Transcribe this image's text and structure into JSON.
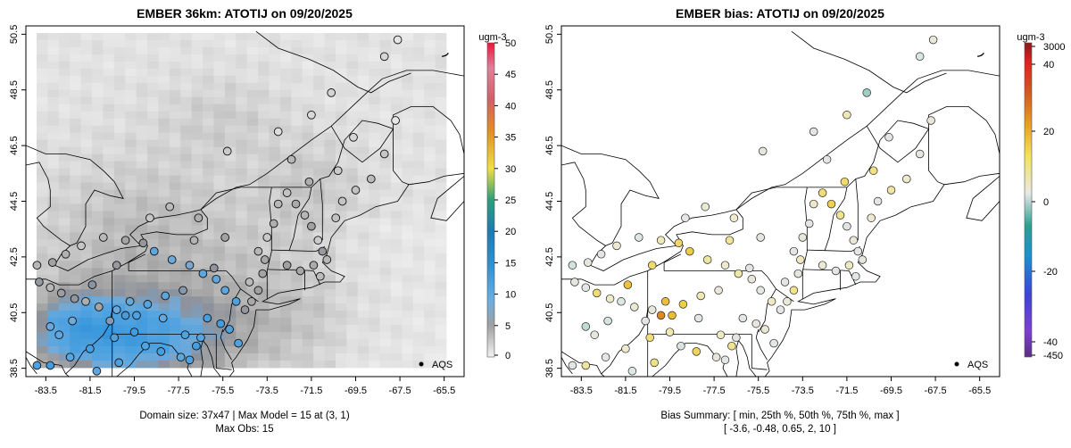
{
  "panels": {
    "left": {
      "title": "EMBER 36km: ATOTIJ on 09/20/2025",
      "colorbar": {
        "unit": "ugm-3",
        "ticks": [
          "0",
          "5",
          "10",
          "15",
          "20",
          "25",
          "30",
          "35",
          "40",
          "45",
          "50"
        ],
        "range": [
          0,
          50
        ]
      },
      "legend": "AQS",
      "footer": [
        "Domain size: 37x47 | Max Model = 15 at (3, 1)",
        "Max Obs: 15"
      ]
    },
    "right": {
      "title": "EMBER bias: ATOTIJ on 09/20/2025",
      "colorbar": {
        "unit": "ugm-3",
        "ticks": [
          "3000",
          "40",
          "20",
          "0",
          "-20",
          "-40",
          "-450"
        ]
      },
      "legend": "AQS",
      "footer": [
        "Bias Summary: [ min, 25th %, 50th %, 75th %, max ]",
        "[ -3.6,   -0.48,   0.65,   2,   10 ]"
      ]
    }
  },
  "axes": {
    "x_ticks": [
      "-83.5",
      "-81.5",
      "-79.5",
      "-77.5",
      "-75.5",
      "-73.5",
      "-71.5",
      "-69.5",
      "-67.5",
      "-65.5"
    ],
    "y_ticks": [
      "38.5",
      "40.5",
      "42.5",
      "44.5",
      "46.5",
      "48.5",
      "50.5"
    ],
    "lon_range": [
      -84.4,
      -64.6
    ],
    "lat_range": [
      38.2,
      50.8
    ]
  },
  "chart_data": {
    "type": "heatmap",
    "title": "EMBER 36km: ATOTIJ on 09/20/2025",
    "variable": "ATOTIJ",
    "unit": "ugm-3",
    "model_max": 15,
    "obs_max": 15,
    "bias_summary": {
      "min": -3.6,
      "p25": -0.48,
      "median": 0.65,
      "p75": 2,
      "max": 10
    },
    "station_network": "AQS",
    "stations": [
      [
        -83.9,
        38.6,
        10.8,
        -0.5
      ],
      [
        -83.3,
        38.6,
        11.8,
        2.1
      ],
      [
        -82.4,
        38.9,
        10.0,
        -0.8
      ],
      [
        -81.5,
        39.2,
        11.2,
        1.0
      ],
      [
        -80.4,
        39.6,
        10.8,
        3.1
      ],
      [
        -79.5,
        39.8,
        12.0,
        1.6
      ],
      [
        -79.0,
        39.3,
        10.3,
        -1.2
      ],
      [
        -78.3,
        39.1,
        11.5,
        4.3
      ],
      [
        -77.4,
        38.9,
        9.6,
        0.4
      ],
      [
        -77.0,
        38.8,
        10.6,
        -0.3
      ],
      [
        -76.7,
        39.3,
        11.4,
        2.4
      ],
      [
        -76.5,
        39.6,
        10.1,
        0.2
      ],
      [
        -77.2,
        39.7,
        10.7,
        1.2
      ],
      [
        -78.2,
        40.3,
        9.2,
        -0.6
      ],
      [
        -79.4,
        40.4,
        10.9,
        6.4
      ],
      [
        -79.9,
        40.4,
        11.8,
        9.6
      ],
      [
        -80.3,
        40.6,
        8.9,
        0.5
      ],
      [
        -80.6,
        40.2,
        7.9,
        -0.2
      ],
      [
        -81.1,
        40.7,
        6.1,
        0.7
      ],
      [
        -81.7,
        40.9,
        5.4,
        -1.0
      ],
      [
        -82.2,
        41.0,
        7.2,
        1.1
      ],
      [
        -82.8,
        41.2,
        6.6,
        3.4
      ],
      [
        -83.3,
        41.4,
        4.7,
        -0.5
      ],
      [
        -83.8,
        41.6,
        6.9,
        0.1
      ],
      [
        -83.9,
        42.2,
        4.8,
        -1.6
      ],
      [
        -83.2,
        42.3,
        6.2,
        0.3
      ],
      [
        -82.6,
        42.6,
        5.2,
        -0.2
      ],
      [
        -81.9,
        42.9,
        3.8,
        0.8
      ],
      [
        -80.9,
        43.2,
        4.7,
        -0.9
      ],
      [
        -79.9,
        43.1,
        6.1,
        1.6
      ],
      [
        -79.1,
        43.0,
        7.0,
        3.8
      ],
      [
        -78.6,
        42.7,
        9.8,
        5.1
      ],
      [
        -77.8,
        42.4,
        8.8,
        2.0
      ],
      [
        -77.0,
        42.2,
        8.4,
        0.9
      ],
      [
        -76.4,
        41.9,
        9.6,
        1.8
      ],
      [
        -75.8,
        41.7,
        9.5,
        0.4
      ],
      [
        -75.4,
        41.3,
        9.7,
        -0.7
      ],
      [
        -74.9,
        40.9,
        10.9,
        1.2
      ],
      [
        -74.5,
        40.6,
        7.1,
        -0.1
      ],
      [
        -74.2,
        40.9,
        5.8,
        0.6
      ],
      [
        -73.9,
        41.3,
        6.4,
        2.6
      ],
      [
        -74.3,
        41.6,
        4.6,
        -0.4
      ],
      [
        -73.7,
        41.9,
        6.1,
        0.3
      ],
      [
        -73.6,
        42.4,
        5.9,
        1.4
      ],
      [
        -73.9,
        42.7,
        4.9,
        -0.3
      ],
      [
        -73.5,
        43.2,
        3.6,
        0.5
      ],
      [
        -73.2,
        43.7,
        5.4,
        -0.6
      ],
      [
        -73.0,
        44.4,
        4.8,
        1.1
      ],
      [
        -72.6,
        44.8,
        3.9,
        3.2
      ],
      [
        -72.2,
        44.4,
        5.7,
        4.5
      ],
      [
        -71.8,
        44.0,
        4.9,
        2.6
      ],
      [
        -71.5,
        43.6,
        6.3,
        -0.2
      ],
      [
        -71.2,
        43.1,
        3.4,
        0.6
      ],
      [
        -71.0,
        42.7,
        6.8,
        -0.6
      ],
      [
        -70.8,
        42.4,
        4.9,
        0.3
      ],
      [
        -71.4,
        42.2,
        5.6,
        1.3
      ],
      [
        -72.0,
        42.0,
        5.9,
        -0.2
      ],
      [
        -72.6,
        42.2,
        6.4,
        0.7
      ],
      [
        -71.1,
        41.8,
        4.5,
        -0.8
      ],
      [
        -70.4,
        43.9,
        4.1,
        0.9
      ],
      [
        -70.1,
        44.5,
        3.9,
        -0.4
      ],
      [
        -69.5,
        44.9,
        4.1,
        2.0
      ],
      [
        -68.8,
        45.3,
        4.6,
        1.0
      ],
      [
        -68.2,
        46.2,
        3.7,
        0.1
      ],
      [
        -69.6,
        46.8,
        2.6,
        -0.6
      ],
      [
        -70.3,
        45.6,
        3.4,
        2.9
      ],
      [
        -71.6,
        45.2,
        5.4,
        3.6
      ],
      [
        -76.6,
        43.9,
        5.4,
        1.0
      ],
      [
        -75.4,
        43.2,
        6.2,
        0.2
      ],
      [
        -75.9,
        42.1,
        7.3,
        -0.2
      ],
      [
        -76.8,
        43.1,
        5.1,
        2.3
      ],
      [
        -78.8,
        43.9,
        3.8,
        -0.3
      ],
      [
        -77.9,
        44.3,
        4.6,
        0.8
      ],
      [
        -80.3,
        42.2,
        6.9,
        3.6
      ],
      [
        -81.4,
        41.5,
        7.6,
        5.8
      ],
      [
        -83.3,
        40.0,
        8.9,
        -2.4
      ],
      [
        -82.9,
        39.7,
        9.4,
        0.3
      ],
      [
        -82.3,
        40.2,
        8.6,
        -1.4
      ],
      [
        -81.2,
        38.4,
        9.6,
        -0.9
      ],
      [
        -80.2,
        38.7,
        10.9,
        2.8
      ],
      [
        -79.7,
        40.9,
        9.2,
        6.1
      ],
      [
        -78.9,
        40.8,
        10.1,
        4.9
      ],
      [
        -78.1,
        41.1,
        9.7,
        1.6
      ],
      [
        -77.3,
        41.3,
        7.8,
        0.5
      ],
      [
        -76.2,
        40.3,
        11.3,
        -0.5
      ],
      [
        -75.6,
        40.1,
        11.6,
        0.2
      ],
      [
        -75.2,
        39.9,
        10.9,
        0.8
      ],
      [
        -74.8,
        39.4,
        10.5,
        -0.6
      ],
      [
        -73.0,
        47.0,
        2.1,
        -0.3
      ],
      [
        -67.7,
        47.4,
        1.1,
        0.4
      ],
      [
        -68.2,
        49.7,
        2.6,
        -1.2
      ],
      [
        -67.6,
        50.3,
        1.2,
        0.6
      ],
      [
        -70.6,
        48.4,
        2.8,
        -3.6
      ],
      [
        -71.5,
        47.6,
        2.4,
        1.6
      ],
      [
        -75.3,
        46.3,
        3.5,
        0.3
      ],
      [
        -72.4,
        46.0,
        4.8,
        -0.4
      ]
    ]
  }
}
